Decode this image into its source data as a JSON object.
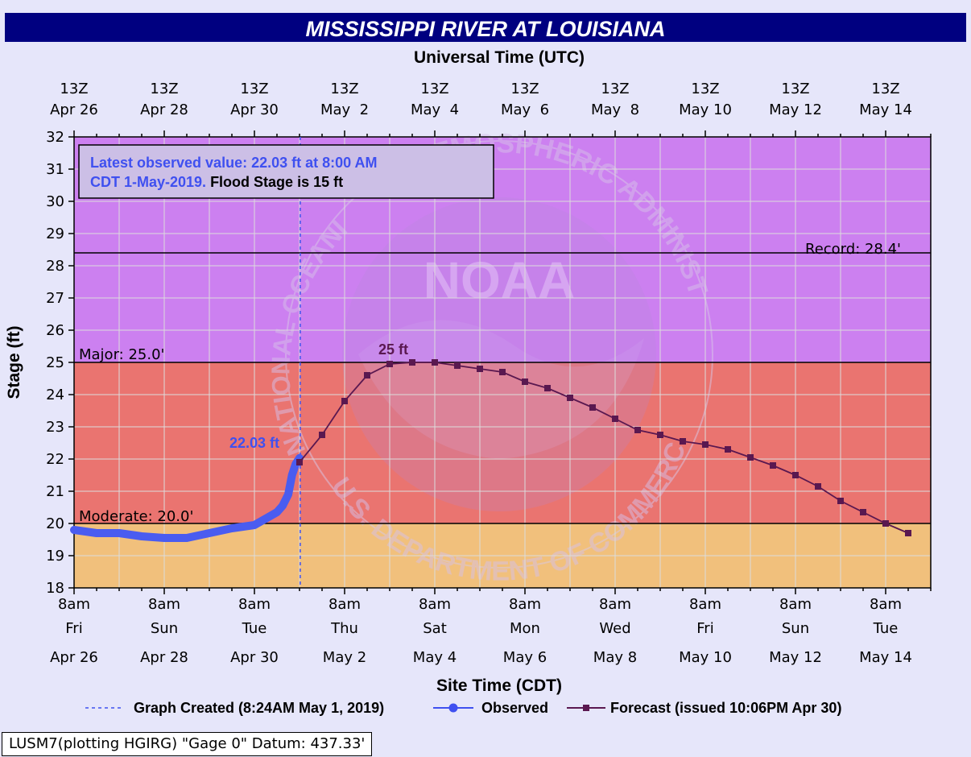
{
  "title": "MISSISSIPPI RIVER AT LOUISIANA",
  "top_axis_title": "Universal Time (UTC)",
  "bottom_axis_title": "Site Time (CDT)",
  "y_axis_title": "Stage (ft)",
  "top_ticks": [
    {
      "l1": "13Z",
      "l2": "Apr 26"
    },
    {
      "l1": "13Z",
      "l2": "Apr 28"
    },
    {
      "l1": "13Z",
      "l2": "Apr 30"
    },
    {
      "l1": "13Z",
      "l2": "May  2"
    },
    {
      "l1": "13Z",
      "l2": "May  4"
    },
    {
      "l1": "13Z",
      "l2": "May  6"
    },
    {
      "l1": "13Z",
      "l2": "May  8"
    },
    {
      "l1": "13Z",
      "l2": "May 10"
    },
    {
      "l1": "13Z",
      "l2": "May 12"
    },
    {
      "l1": "13Z",
      "l2": "May 14"
    }
  ],
  "bottom_ticks": [
    {
      "l1": "8am",
      "l2": "Fri",
      "l3": "Apr 26"
    },
    {
      "l1": "8am",
      "l2": "Sun",
      "l3": "Apr 28"
    },
    {
      "l1": "8am",
      "l2": "Tue",
      "l3": "Apr 30"
    },
    {
      "l1": "8am",
      "l2": "Thu",
      "l3": "May 2"
    },
    {
      "l1": "8am",
      "l2": "Sat",
      "l3": "May 4"
    },
    {
      "l1": "8am",
      "l2": "Mon",
      "l3": "May 6"
    },
    {
      "l1": "8am",
      "l2": "Wed",
      "l3": "May 8"
    },
    {
      "l1": "8am",
      "l2": "Fri",
      "l3": "May 10"
    },
    {
      "l1": "8am",
      "l2": "Sun",
      "l3": "May 12"
    },
    {
      "l1": "8am",
      "l2": "Tue",
      "l3": "May 14"
    }
  ],
  "info_box": {
    "part1": "Latest observed value: 22.03 ft at 8:00 AM",
    "part2": "CDT 1-May-2019.",
    "part3": " Flood Stage is 15 ft"
  },
  "labels": {
    "record": "Record: 28.4'",
    "major": "Major: 25.0'",
    "moderate": "Moderate: 20.0'",
    "peak": "25 ft",
    "latest": "22.03 ft"
  },
  "legend": {
    "created": "Graph Created (8:24AM May 1, 2019)",
    "observed": "Observed",
    "forecast": "Forecast (issued 10:06PM Apr 30)"
  },
  "footer": "LUSM7(plotting HGIRG) \"Gage 0\" Datum: 437.33'",
  "watermark": {
    "emblem": "NOAA",
    "top": "ATMOSPHERIC ADMINISTRATION",
    "left": "NATIONAL OCEANIC AND",
    "bottom": "U.S. DEPARTMENT OF COMMERCE"
  },
  "colors": {
    "background": "#e6e6fa",
    "title_bar": "#000080",
    "major_zone": "#cc80f0",
    "moderate_zone": "#ea7470",
    "minor_zone": "#f1c07c",
    "observed": "#4a5cf0",
    "forecast": "#5a1850",
    "grid": "#dcdcdc"
  },
  "chart_data": {
    "type": "line",
    "title": "MISSISSIPPI RIVER AT LOUISIANA",
    "xlabel": "Site Time (CDT)",
    "ylabel": "Stage (ft)",
    "ylim": [
      18,
      32
    ],
    "xlim": [
      "2019-04-26 08:00 CDT",
      "2019-05-15 08:00 CDT"
    ],
    "grid": true,
    "thresholds": {
      "moderate": 20.0,
      "major": 25.0,
      "record": 28.4,
      "flood_stage": 15
    },
    "graph_created": "2019-05-01 08:24 CDT",
    "series": [
      {
        "name": "Observed",
        "x": [
          "2019-04-26 08:00",
          "2019-04-26 20:00",
          "2019-04-27 08:00",
          "2019-04-27 20:00",
          "2019-04-28 08:00",
          "2019-04-28 20:00",
          "2019-04-29 08:00",
          "2019-04-29 20:00",
          "2019-04-30 08:00",
          "2019-04-30 14:00",
          "2019-04-30 20:00",
          "2019-04-30 23:00",
          "2019-05-01 02:00",
          "2019-05-01 04:00",
          "2019-05-01 06:00",
          "2019-05-01 08:00"
        ],
        "y": [
          19.8,
          19.7,
          19.7,
          19.6,
          19.55,
          19.55,
          19.7,
          19.85,
          19.95,
          20.15,
          20.35,
          20.55,
          20.9,
          21.5,
          21.85,
          22.03
        ]
      },
      {
        "name": "Forecast (issued 10:06PM Apr 30)",
        "x": [
          "2019-05-01 08:00",
          "2019-05-01 20:00",
          "2019-05-02 08:00",
          "2019-05-02 20:00",
          "2019-05-03 08:00",
          "2019-05-03 20:00",
          "2019-05-04 08:00",
          "2019-05-04 20:00",
          "2019-05-05 08:00",
          "2019-05-05 20:00",
          "2019-05-06 08:00",
          "2019-05-06 20:00",
          "2019-05-07 08:00",
          "2019-05-07 20:00",
          "2019-05-08 08:00",
          "2019-05-08 20:00",
          "2019-05-09 08:00",
          "2019-05-09 20:00",
          "2019-05-10 08:00",
          "2019-05-10 20:00",
          "2019-05-11 08:00",
          "2019-05-11 20:00",
          "2019-05-12 08:00",
          "2019-05-12 20:00",
          "2019-05-13 08:00",
          "2019-05-13 20:00",
          "2019-05-14 08:00",
          "2019-05-14 20:00"
        ],
        "y": [
          21.9,
          22.75,
          23.8,
          24.6,
          24.95,
          25.0,
          25.0,
          24.9,
          24.8,
          24.7,
          24.4,
          24.2,
          23.9,
          23.6,
          23.25,
          22.9,
          22.75,
          22.55,
          22.45,
          22.3,
          22.05,
          21.8,
          21.5,
          21.15,
          20.7,
          20.35,
          20.0,
          19.7
        ]
      }
    ]
  }
}
